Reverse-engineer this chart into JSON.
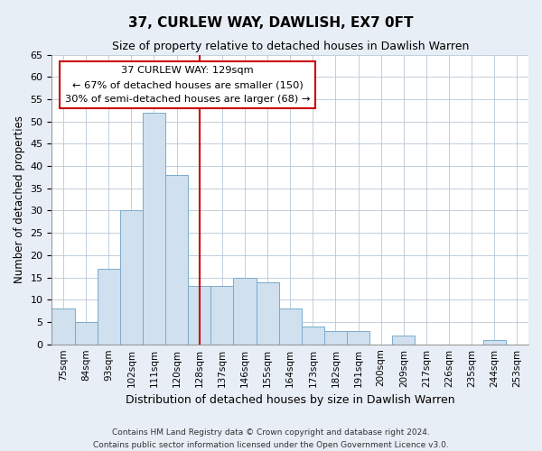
{
  "title": "37, CURLEW WAY, DAWLISH, EX7 0FT",
  "subtitle": "Size of property relative to detached houses in Dawlish Warren",
  "xlabel": "Distribution of detached houses by size in Dawlish Warren",
  "ylabel": "Number of detached properties",
  "bar_labels": [
    "75sqm",
    "84sqm",
    "93sqm",
    "102sqm",
    "111sqm",
    "120sqm",
    "128sqm",
    "137sqm",
    "146sqm",
    "155sqm",
    "164sqm",
    "173sqm",
    "182sqm",
    "191sqm",
    "200sqm",
    "209sqm",
    "217sqm",
    "226sqm",
    "235sqm",
    "244sqm",
    "253sqm"
  ],
  "bar_values": [
    8,
    5,
    17,
    30,
    52,
    38,
    13,
    13,
    15,
    14,
    8,
    4,
    3,
    3,
    0,
    2,
    0,
    0,
    0,
    1,
    0
  ],
  "bar_color": "#d0e0ee",
  "bar_edge_color": "#7aabcc",
  "vline_color": "#cc0000",
  "vline_pos": 6.5,
  "annotation_text": "37 CURLEW WAY: 129sqm\n← 67% of detached houses are smaller (150)\n30% of semi-detached houses are larger (68) →",
  "annotation_box_color": "#ffffff",
  "annotation_box_edge": "#cc0000",
  "ylim": [
    0,
    65
  ],
  "yticks": [
    0,
    5,
    10,
    15,
    20,
    25,
    30,
    35,
    40,
    45,
    50,
    55,
    60,
    65
  ],
  "footer_line1": "Contains HM Land Registry data © Crown copyright and database right 2024.",
  "footer_line2": "Contains public sector information licensed under the Open Government Licence v3.0.",
  "bg_color": "#e8eef5",
  "plot_bg_color": "#ffffff"
}
